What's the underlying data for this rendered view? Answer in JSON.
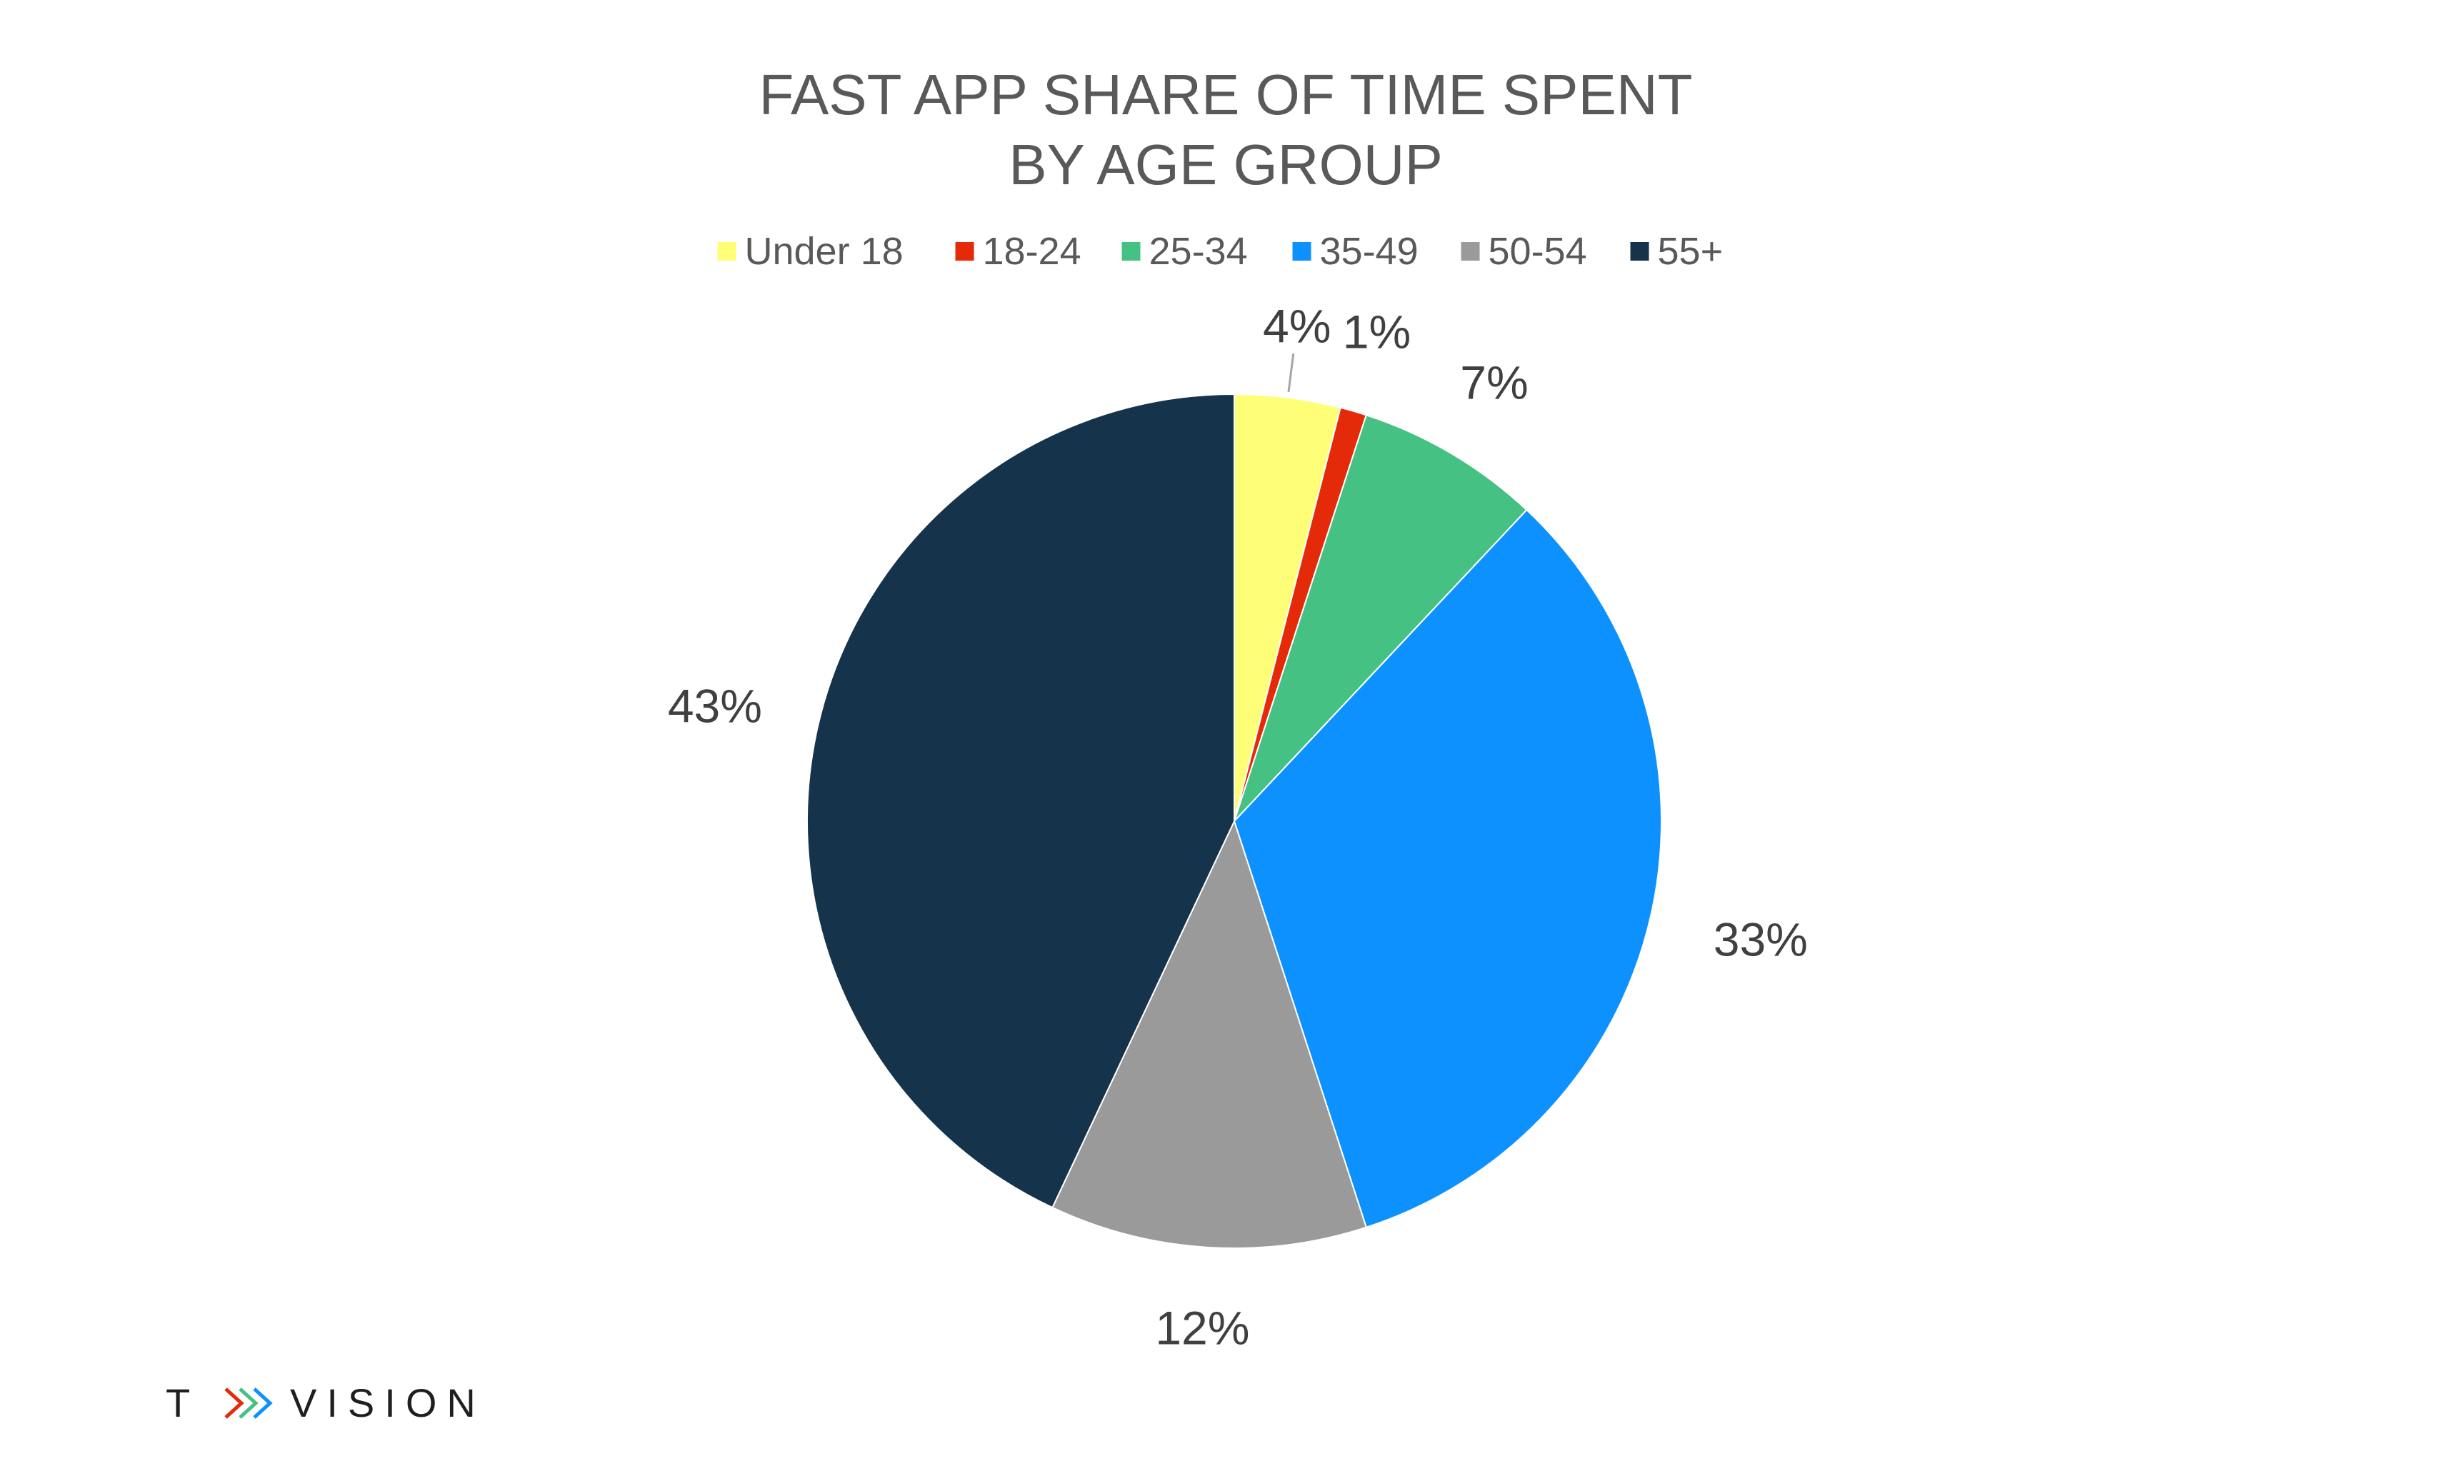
{
  "chart_data": {
    "type": "pie",
    "title": "FAST APP SHARE OF TIME SPENT",
    "subtitle": "BY AGE GROUP",
    "legend_position": "top",
    "start_angle_deg": 0,
    "direction": "clockwise",
    "slices": [
      {
        "label": "Under 18",
        "value": 4,
        "display": "4%",
        "color": "#FFFF77"
      },
      {
        "label": "18-24",
        "value": 1,
        "display": "1%",
        "color": "#E52A0A"
      },
      {
        "label": "25-34",
        "value": 7,
        "display": "7%",
        "color": "#45C283"
      },
      {
        "label": "35-49",
        "value": 33,
        "display": "33%",
        "color": "#0D91FF"
      },
      {
        "label": "50-54",
        "value": 12,
        "display": "12%",
        "color": "#9A9A9A"
      },
      {
        "label": "55+",
        "value": 43,
        "display": "43%",
        "color": "#16334C"
      }
    ]
  },
  "brand": {
    "logo_text": "TVISION",
    "logo_left": "T",
    "logo_right": "VISION",
    "chevron_colors": [
      "#E52A0A",
      "#45C283",
      "#0D91FF"
    ]
  }
}
